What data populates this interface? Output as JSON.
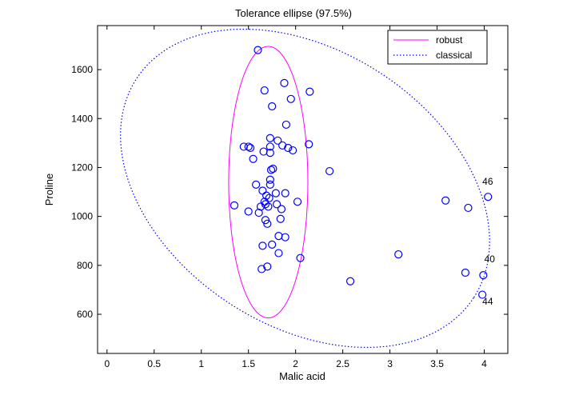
{
  "chart_data": {
    "type": "scatter",
    "title": "Tolerance ellipse (97.5%)",
    "xlabel": "Malic acid",
    "ylabel": "Proline",
    "xlim": [
      -0.1,
      4.25
    ],
    "ylim": [
      440,
      1780
    ],
    "xticks": [
      0,
      0.5,
      1,
      1.5,
      2,
      2.5,
      3,
      3.5,
      4
    ],
    "xtick_labels": [
      "0",
      "0.5",
      "1",
      "1.5",
      "2",
      "2.5",
      "3",
      "3.5",
      "4"
    ],
    "yticks": [
      600,
      800,
      1000,
      1200,
      1400,
      1600
    ],
    "ytick_labels": [
      "600",
      "800",
      "1000",
      "1200",
      "1400",
      "1600"
    ],
    "grid": false,
    "legend_position": "top-right",
    "series": [
      {
        "marker": "open-circle",
        "color": "#0000ff",
        "points": [
          [
            1.6,
            1680
          ],
          [
            1.67,
            1515
          ],
          [
            1.88,
            1545
          ],
          [
            2.15,
            1510
          ],
          [
            1.95,
            1480
          ],
          [
            1.75,
            1450
          ],
          [
            1.9,
            1375
          ],
          [
            1.73,
            1320
          ],
          [
            1.81,
            1310
          ],
          [
            1.86,
            1290
          ],
          [
            1.92,
            1280
          ],
          [
            1.97,
            1270
          ],
          [
            2.14,
            1295
          ],
          [
            1.45,
            1285
          ],
          [
            1.5,
            1285
          ],
          [
            1.52,
            1280
          ],
          [
            1.66,
            1265
          ],
          [
            1.73,
            1285
          ],
          [
            1.73,
            1260
          ],
          [
            1.55,
            1235
          ],
          [
            2.36,
            1185
          ],
          [
            1.76,
            1195
          ],
          [
            1.74,
            1190
          ],
          [
            1.73,
            1150
          ],
          [
            1.73,
            1130
          ],
          [
            1.58,
            1130
          ],
          [
            1.65,
            1105
          ],
          [
            1.79,
            1095
          ],
          [
            1.89,
            1095
          ],
          [
            1.69,
            1085
          ],
          [
            1.72,
            1075
          ],
          [
            1.67,
            1060
          ],
          [
            1.68,
            1050
          ],
          [
            1.8,
            1050
          ],
          [
            2.02,
            1060
          ],
          [
            1.71,
            1040
          ],
          [
            1.63,
            1040
          ],
          [
            1.85,
            1030
          ],
          [
            1.61,
            1015
          ],
          [
            1.5,
            1020
          ],
          [
            1.35,
            1045
          ],
          [
            1.68,
            985
          ],
          [
            1.84,
            990
          ],
          [
            1.7,
            970
          ],
          [
            1.65,
            880
          ],
          [
            1.75,
            885
          ],
          [
            1.82,
            920
          ],
          [
            1.89,
            915
          ],
          [
            1.82,
            850
          ],
          [
            2.05,
            830
          ],
          [
            1.64,
            785
          ],
          [
            1.7,
            795
          ],
          [
            2.58,
            735
          ],
          [
            3.09,
            845
          ],
          [
            3.59,
            1065
          ],
          [
            3.83,
            1035
          ],
          [
            4.04,
            1080
          ],
          [
            3.8,
            770
          ],
          [
            3.99,
            760
          ],
          [
            3.98,
            680
          ]
        ]
      }
    ],
    "ellipses": [
      {
        "name": "robust",
        "color": "#ff00ff",
        "style": "solid",
        "center": [
          1.71,
          1140
        ],
        "semi_axis_x": 0.42,
        "semi_axis_y": 555,
        "rotation_deg": 0
      },
      {
        "name": "classical",
        "color": "#0000ff",
        "style": "dotted",
        "center": [
          2.1,
          1115
        ],
        "radius_x_range": 0.98,
        "radius_y_range": 0.42,
        "rotation_deg": 33
      }
    ],
    "annotations": [
      {
        "text": "46",
        "x": 3.98,
        "y": 1130
      },
      {
        "text": "40",
        "x": 4.0,
        "y": 812
      },
      {
        "text": "44",
        "x": 3.98,
        "y": 640
      }
    ]
  }
}
